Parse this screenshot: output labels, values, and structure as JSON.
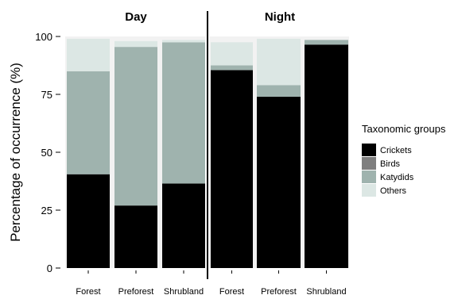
{
  "chart_data": {
    "type": "bar",
    "stacked": true,
    "ylabel": "Percentage of occurrence (%)",
    "ylim": [
      0,
      100
    ],
    "yticks": [
      0,
      25,
      50,
      75,
      100
    ],
    "legend": {
      "title": "Taxonomic groups",
      "position": "right",
      "entries": [
        {
          "name": "Crickets",
          "color": "#000000"
        },
        {
          "name": "Birds",
          "color": "#7f7f7f"
        },
        {
          "name": "Katydids",
          "color": "#9fb3ae"
        },
        {
          "name": "Others",
          "color": "#dce7e4"
        }
      ]
    },
    "panels": [
      {
        "title": "Day",
        "categories": [
          "Forest",
          "Preforest",
          "Shrubland"
        ],
        "series": [
          {
            "name": "Crickets",
            "values": [
              40.5,
              27,
              36.5
            ]
          },
          {
            "name": "Birds",
            "values": [
              0,
              0,
              0
            ]
          },
          {
            "name": "Katydids",
            "values": [
              44.5,
              68.5,
              61
            ]
          },
          {
            "name": "Others",
            "values": [
              14,
              2.5,
              1
            ]
          }
        ]
      },
      {
        "title": "Night",
        "categories": [
          "Forest",
          "Preforest",
          "Shrubland"
        ],
        "series": [
          {
            "name": "Crickets",
            "values": [
              85.5,
              74,
              96.5
            ]
          },
          {
            "name": "Birds",
            "values": [
              0,
              0,
              0
            ]
          },
          {
            "name": "Katydids",
            "values": [
              2,
              5,
              2
            ]
          },
          {
            "name": "Others",
            "values": [
              10,
              20,
              0
            ]
          }
        ]
      }
    ]
  }
}
